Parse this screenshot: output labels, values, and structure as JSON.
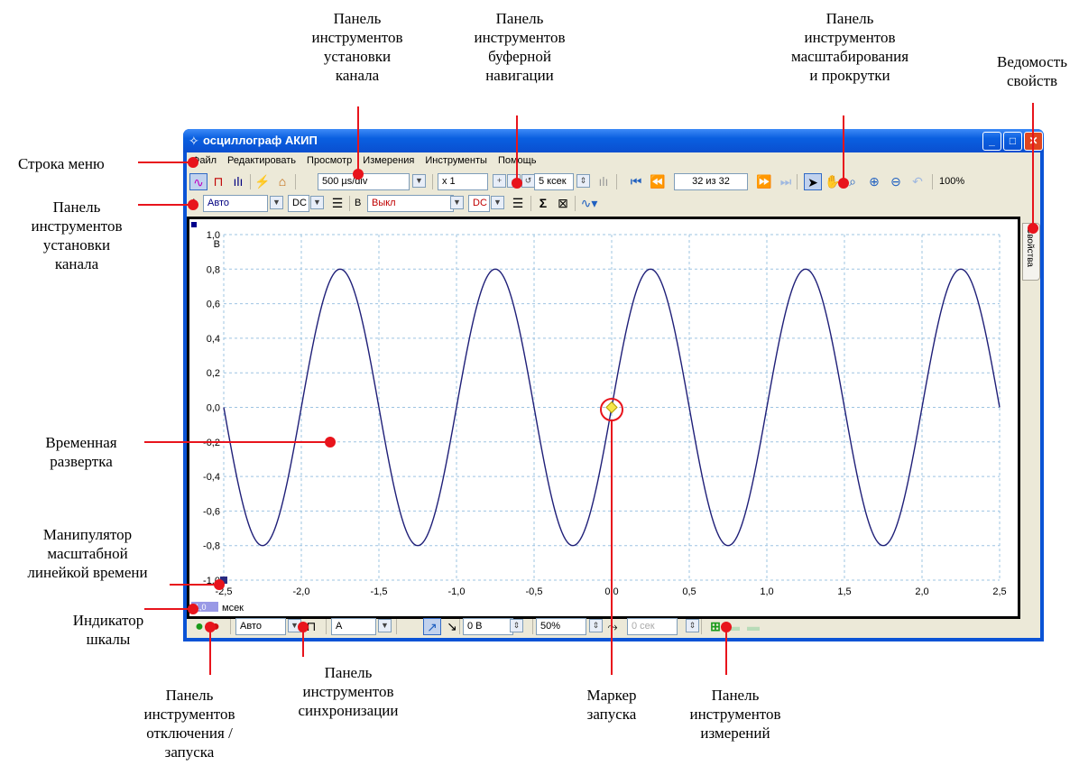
{
  "callouts": {
    "channel_toolbar_top": [
      "Панель",
      "инструментов",
      "установки",
      "канала"
    ],
    "buffer_nav_toolbar": [
      "Панель",
      "инструментов",
      "буферной",
      "навигации"
    ],
    "zoom_scroll_toolbar": [
      "Панель",
      "инструментов",
      "масштабирования",
      "и прокрутки"
    ],
    "properties_sheet": [
      "Ведомость",
      "свойств"
    ],
    "menu_bar": [
      "Строка меню"
    ],
    "channel_toolbar_left": [
      "Панель",
      "инструментов",
      "установки",
      "канала"
    ],
    "timebase": [
      "Временная",
      "развертка"
    ],
    "ruler_handle": [
      "Манипулятор",
      "масштабной",
      "линейкой времени"
    ],
    "scale_indicator": [
      "Индикатор",
      "шкалы"
    ],
    "start_stop_toolbar": [
      "Панель",
      "инструментов",
      "отключения /",
      "запуска"
    ],
    "trigger_toolbar": [
      "Панель",
      "инструментов",
      "синхронизации"
    ],
    "trigger_marker": [
      "Маркер",
      "запуска"
    ],
    "measurements_toolbar": [
      "Панель",
      "инструментов",
      "измерений"
    ]
  },
  "window": {
    "title": "осциллограф АКИП",
    "menu": [
      "Файл",
      "Редактировать",
      "Просмотр",
      "Измерения",
      "Инструменты",
      "Помощь"
    ],
    "toolbar1": {
      "timebase": "500 µs/div",
      "zoom": "x 1",
      "samples": "5 ксек",
      "buffer_pos": "32 из 32",
      "zoom_pct": "100%"
    },
    "toolbar2": {
      "ch_a_label": "A",
      "ch_a_range": "Авто",
      "ch_a_coupling": "DC",
      "ch_b_label": "B",
      "ch_b_range": "Выкл",
      "ch_b_coupling": "DC"
    },
    "properties_tab": "Свойства",
    "statusbar": {
      "trigger_mode": "Авто",
      "trigger_source": "A",
      "threshold": "0 В",
      "pretrigger": "50%",
      "delay": "0 сек"
    },
    "scale_indicator": "1,0",
    "x_unit": "мсек",
    "y_unit": "В"
  },
  "colors": {
    "trace": "#1f1f78",
    "grid": "#9ec4e2",
    "callout_line": "#e8141c",
    "title_bar": "#0a5fe0"
  },
  "chart_data": {
    "type": "line",
    "xlabel": "мсек",
    "ylabel": "В",
    "x_ticks": [
      "-2,5",
      "-2,0",
      "-1,5",
      "-1,0",
      "-0,5",
      "0,0",
      "0,5",
      "1,0",
      "1,5",
      "2,0",
      "2,5"
    ],
    "y_ticks": [
      "1,0",
      "0,8",
      "0,6",
      "0,4",
      "0,2",
      "0,0",
      "-0,2",
      "-0,4",
      "-0,6",
      "-0,8",
      "-1,0"
    ],
    "xlim": [
      -2.5,
      2.5
    ],
    "ylim": [
      -1.0,
      1.0
    ],
    "grid": true,
    "series": [
      {
        "amplitude": 0.8,
        "frequency_khz": 1.0,
        "phase_note": "sine, zero crossing at 0,0 rising",
        "x": [
          -2.5,
          -2.25,
          -2.0,
          -1.75,
          -1.5,
          -1.25,
          -1.0,
          -0.75,
          -0.5,
          -0.25,
          0.0,
          0.25,
          0.5,
          0.75,
          1.0,
          1.25,
          1.5,
          1.75,
          2.0,
          2.25,
          2.5
        ],
        "y": [
          0.0,
          -0.8,
          0.0,
          0.8,
          0.0,
          -0.8,
          0.0,
          0.8,
          0.0,
          -0.8,
          0.0,
          0.8,
          0.0,
          -0.8,
          0.0,
          0.8,
          0.0,
          -0.8,
          0.0,
          0.8,
          0.0
        ]
      }
    ],
    "trigger_marker": {
      "x": 0.0,
      "y": 0.0
    }
  }
}
